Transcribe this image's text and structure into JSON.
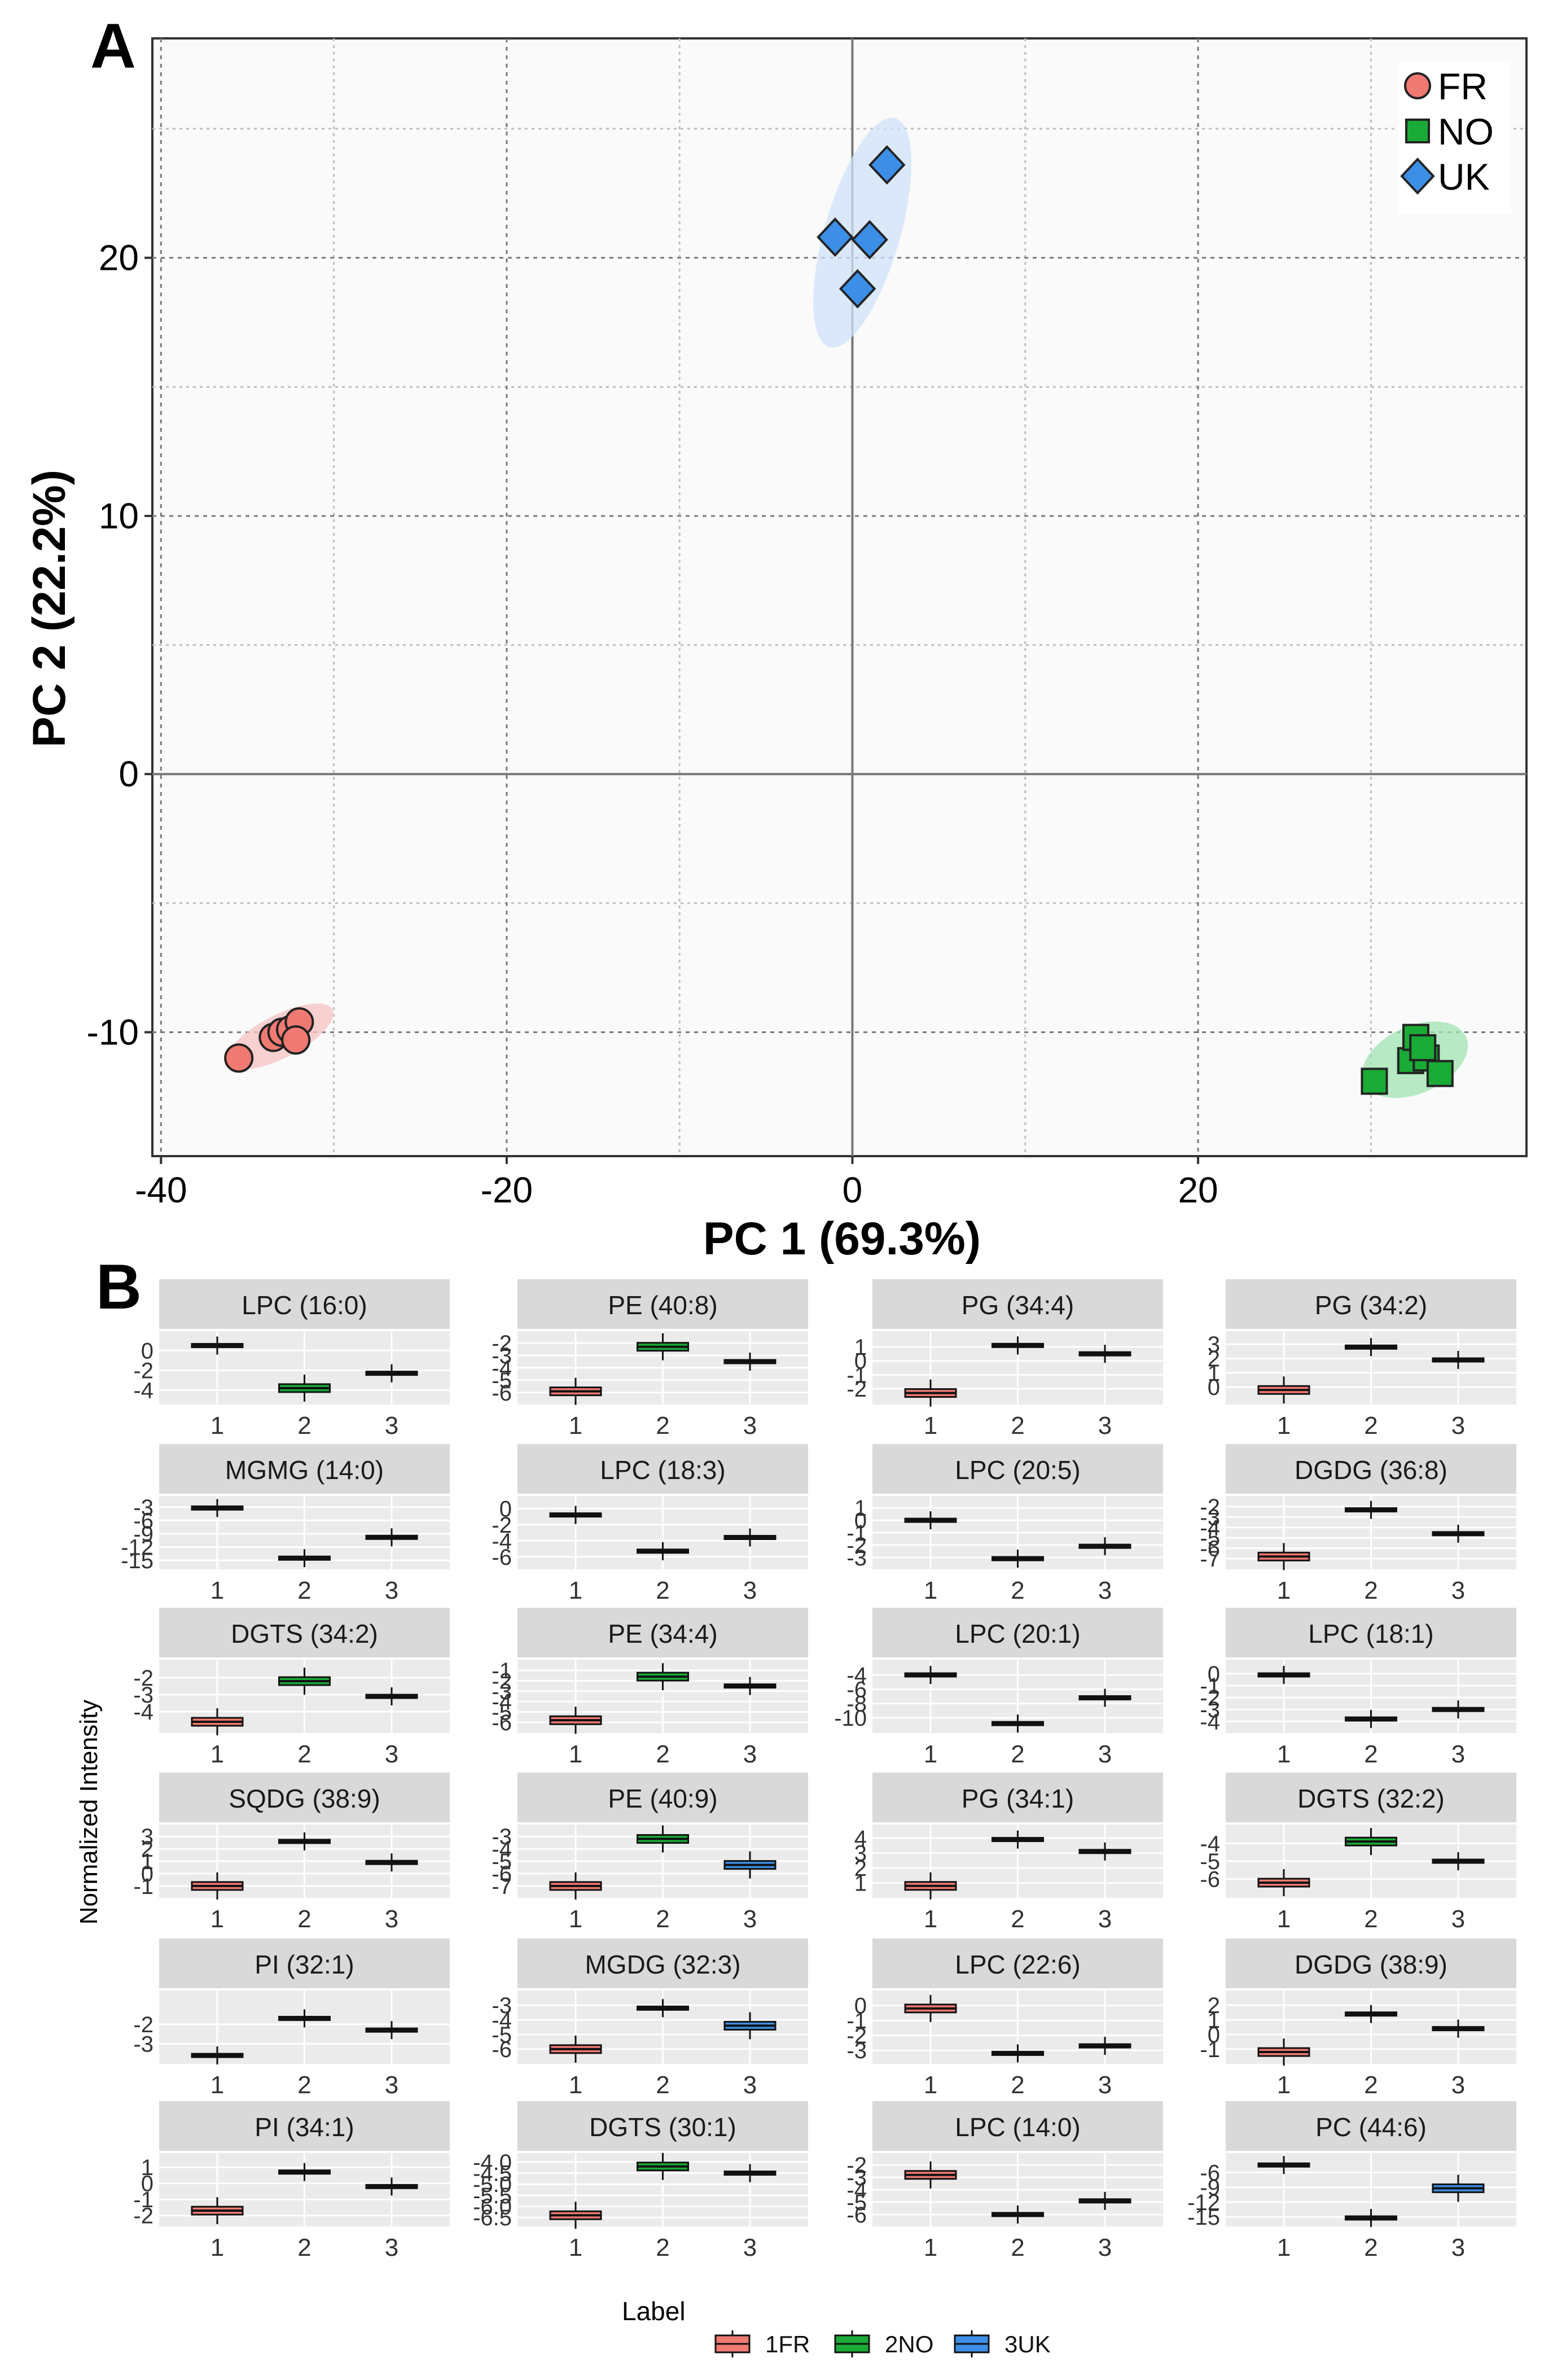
{
  "colors": {
    "FR": "#f07a72",
    "NO": "#1aab36",
    "UK": "#3d8ee6",
    "FR_ellipse": "#f6c2c0",
    "NO_ellipse": "#9fe3b1",
    "UK_ellipse": "#cfe2fa"
  },
  "panel_a": {
    "label": "A",
    "chart_data": {
      "type": "scatter",
      "title": "",
      "xlabel": "PC 1 (69.3%)",
      "ylabel": "PC 2 (22.2%)",
      "xlim": [
        -40.5,
        39
      ],
      "ylim": [
        -14.8,
        28.5
      ],
      "xticks": [
        -40,
        -20,
        0,
        20
      ],
      "yticks": [
        -10,
        0,
        10,
        20
      ],
      "grid": true,
      "legend_position": "top-right",
      "series": [
        {
          "name": "FR",
          "marker": "circle",
          "x": [
            -35.5,
            -33.5,
            -33,
            -32.5,
            -32,
            -32.2
          ],
          "y": [
            -11.0,
            -10.2,
            -10.0,
            -9.9,
            -9.6,
            -10.3
          ]
        },
        {
          "name": "NO",
          "marker": "square",
          "x": [
            30.2,
            32.3,
            32.6,
            33.2,
            34,
            33
          ],
          "y": [
            -11.9,
            -11.1,
            -10.2,
            -11.0,
            -11.6,
            -10.6
          ]
        },
        {
          "name": "UK",
          "marker": "diamond",
          "x": [
            -1.0,
            2.0,
            1.0,
            0.3
          ],
          "y": [
            20.8,
            23.6,
            20.7,
            18.8
          ]
        }
      ]
    }
  },
  "panel_b": {
    "label": "B",
    "ylabel": "Normalized Intensity",
    "legend_title": "Label",
    "legend_items": [
      "1FR",
      "2NO",
      "3UK"
    ],
    "chart_data": [
      {
        "type": "box",
        "title": "LPC (16:0)",
        "categories": [
          "1",
          "2",
          "3"
        ],
        "yticks": [
          "0",
          "-2",
          "-4"
        ],
        "ylim": [
          -5,
          1.5
        ],
        "medians": [
          0.5,
          -3.8,
          -2.3
        ],
        "colored": [
          false,
          true,
          false
        ]
      },
      {
        "type": "box",
        "title": "PE (40:8)",
        "categories": [
          "1",
          "2",
          "3"
        ],
        "yticks": [
          "-2",
          "-3",
          "-4",
          "-5",
          "-6"
        ],
        "ylim": [
          -6.6,
          -1.4
        ],
        "medians": [
          -5.9,
          -2.3,
          -3.5
        ],
        "colored": [
          true,
          true,
          false
        ]
      },
      {
        "type": "box",
        "title": "PG (34:4)",
        "categories": [
          "1",
          "2",
          "3"
        ],
        "yticks": [
          "1",
          "0",
          "-1",
          "-2"
        ],
        "ylim": [
          -2.8,
          1.8
        ],
        "medians": [
          -2.3,
          1.1,
          0.5
        ],
        "colored": [
          true,
          false,
          false
        ]
      },
      {
        "type": "box",
        "title": "PG (34:2)",
        "categories": [
          "1",
          "2",
          "3"
        ],
        "yticks": [
          "3",
          "2",
          "1",
          "0"
        ],
        "ylim": [
          -0.9,
          3.6
        ],
        "medians": [
          -0.2,
          2.8,
          1.9
        ],
        "colored": [
          true,
          false,
          false
        ]
      },
      {
        "type": "box",
        "title": "MGMG (14:0)",
        "categories": [
          "1",
          "2",
          "3"
        ],
        "yticks": [
          "-3",
          "-6",
          "-9",
          "-12",
          "-15"
        ],
        "ylim": [
          -16,
          -1.5
        ],
        "medians": [
          -3.2,
          -14.5,
          -9.8
        ],
        "colored": [
          false,
          false,
          false
        ]
      },
      {
        "type": "box",
        "title": "LPC (18:3)",
        "categories": [
          "1",
          "2",
          "3"
        ],
        "yticks": [
          "0",
          "-2",
          "-4",
          "-6"
        ],
        "ylim": [
          -7,
          1
        ],
        "medians": [
          -0.8,
          -5.3,
          -3.6
        ],
        "colored": [
          false,
          false,
          false
        ]
      },
      {
        "type": "box",
        "title": "LPC (20:5)",
        "categories": [
          "1",
          "2",
          "3"
        ],
        "yticks": [
          "1",
          "0",
          "-1",
          "-2",
          "-3"
        ],
        "ylim": [
          -3.6,
          1.6
        ],
        "medians": [
          0,
          -3.1,
          -2.1
        ],
        "colored": [
          false,
          false,
          false
        ]
      },
      {
        "type": "box",
        "title": "DGDG (36:8)",
        "categories": [
          "1",
          "2",
          "3"
        ],
        "yticks": [
          "-2",
          "-3",
          "-4",
          "-5",
          "-6",
          "-7"
        ],
        "ylim": [
          -7.6,
          -1.4
        ],
        "medians": [
          -6.8,
          -2.3,
          -4.6
        ],
        "colored": [
          true,
          false,
          false
        ]
      },
      {
        "type": "box",
        "title": "DGTS (34:2)",
        "categories": [
          "1",
          "2",
          "3"
        ],
        "yticks": [
          "-2",
          "-3",
          "-4"
        ],
        "ylim": [
          -5,
          -1.2
        ],
        "medians": [
          -4.6,
          -2.2,
          -3.1
        ],
        "colored": [
          true,
          true,
          false
        ]
      },
      {
        "type": "box",
        "title": "PE (34:4)",
        "categories": [
          "1",
          "2",
          "3"
        ],
        "yticks": [
          "-1",
          "-2",
          "-3",
          "-4",
          "-5",
          "-6"
        ],
        "ylim": [
          -6.6,
          -0.4
        ],
        "medians": [
          -5.8,
          -1.6,
          -2.5
        ],
        "colored": [
          true,
          true,
          false
        ]
      },
      {
        "type": "box",
        "title": "LPC (20:1)",
        "categories": [
          "1",
          "2",
          "3"
        ],
        "yticks": [
          "-4",
          "-6",
          "-8",
          "-10"
        ],
        "ylim": [
          -11.5,
          -2.5
        ],
        "medians": [
          -4.0,
          -10.8,
          -7.2
        ],
        "colored": [
          false,
          false,
          false
        ]
      },
      {
        "type": "box",
        "title": "LPC (18:1)",
        "categories": [
          "1",
          "2",
          "3"
        ],
        "yticks": [
          "0",
          "-1",
          "-2",
          "-3",
          "-4"
        ],
        "ylim": [
          -4.6,
          0.8
        ],
        "medians": [
          -0.1,
          -3.8,
          -3.0
        ],
        "colored": [
          false,
          false,
          false
        ]
      },
      {
        "type": "box",
        "title": "SQDG (38:9)",
        "categories": [
          "1",
          "2",
          "3"
        ],
        "yticks": [
          "3",
          "2",
          "1",
          "0",
          "-1"
        ],
        "ylim": [
          -1.6,
          3.6
        ],
        "medians": [
          -1.0,
          2.6,
          0.9
        ],
        "colored": [
          true,
          false,
          false
        ]
      },
      {
        "type": "box",
        "title": "PE (40:9)",
        "categories": [
          "1",
          "2",
          "3"
        ],
        "yticks": [
          "-3",
          "-4",
          "-5",
          "-6",
          "-7"
        ],
        "ylim": [
          -7.6,
          -2.4
        ],
        "medians": [
          -7.0,
          -3.2,
          -5.3
        ],
        "colored": [
          true,
          true,
          true
        ]
      },
      {
        "type": "box",
        "title": "PG (34:1)",
        "categories": [
          "1",
          "2",
          "3"
        ],
        "yticks": [
          "4",
          "3",
          "2",
          "1"
        ],
        "ylim": [
          0.3,
          4.6
        ],
        "medians": [
          0.8,
          3.9,
          3.1
        ],
        "colored": [
          true,
          false,
          false
        ]
      },
      {
        "type": "box",
        "title": "DGTS (32:2)",
        "categories": [
          "1",
          "2",
          "3"
        ],
        "yticks": [
          "-4",
          "-5",
          "-6"
        ],
        "ylim": [
          -6.8,
          -3.2
        ],
        "medians": [
          -6.2,
          -3.9,
          -5.0
        ],
        "colored": [
          true,
          true,
          false
        ]
      },
      {
        "type": "box",
        "title": "PI (32:1)",
        "categories": [
          "1",
          "2",
          "3"
        ],
        "yticks": [
          "-2",
          "-3"
        ],
        "ylim": [
          -3.8,
          -0.5
        ],
        "medians": [
          -3.6,
          -1.7,
          -2.3
        ],
        "colored": [
          false,
          false,
          false
        ]
      },
      {
        "type": "box",
        "title": "MGDG (32:3)",
        "categories": [
          "1",
          "2",
          "3"
        ],
        "yticks": [
          "-3",
          "-4",
          "-5",
          "-6"
        ],
        "ylim": [
          -6.7,
          -2.3
        ],
        "medians": [
          -6.0,
          -3.2,
          -4.4
        ],
        "colored": [
          true,
          false,
          true
        ]
      },
      {
        "type": "box",
        "title": "LPC (22:6)",
        "categories": [
          "1",
          "2",
          "3"
        ],
        "yticks": [
          "0",
          "-1",
          "-2",
          "-3"
        ],
        "ylim": [
          -3.6,
          0.7
        ],
        "medians": [
          -0.2,
          -3.2,
          -2.7
        ],
        "colored": [
          true,
          false,
          false
        ]
      },
      {
        "type": "box",
        "title": "DGDG (38:9)",
        "categories": [
          "1",
          "2",
          "3"
        ],
        "yticks": [
          "2",
          "1",
          "0",
          "-1"
        ],
        "ylim": [
          -1.7,
          2.7
        ],
        "medians": [
          -1.2,
          1.4,
          0.4
        ],
        "colored": [
          true,
          false,
          false
        ]
      },
      {
        "type": "box",
        "title": "PI (34:1)",
        "categories": [
          "1",
          "2",
          "3"
        ],
        "yticks": [
          "1",
          "0",
          "-1",
          "-2"
        ],
        "ylim": [
          -2.4,
          1.6
        ],
        "medians": [
          -1.7,
          0.7,
          -0.2
        ],
        "colored": [
          true,
          false,
          false
        ]
      },
      {
        "type": "box",
        "title": "DGTS (30:1)",
        "categories": [
          "1",
          "2",
          "3"
        ],
        "yticks": [
          "-4.0",
          "-4.5",
          "-5.0",
          "-5.5",
          "-6.0",
          "-6.5"
        ],
        "ylim": [
          -6.7,
          -3.8
        ],
        "medians": [
          -6.4,
          -4.2,
          -4.5
        ],
        "colored": [
          true,
          true,
          false
        ]
      },
      {
        "type": "box",
        "title": "LPC (14:0)",
        "categories": [
          "1",
          "2",
          "3"
        ],
        "yticks": [
          "-2",
          "-3",
          "-4",
          "-5",
          "-6"
        ],
        "ylim": [
          -6.6,
          -1.4
        ],
        "medians": [
          -2.8,
          -6.0,
          -4.9
        ],
        "colored": [
          true,
          false,
          false
        ]
      },
      {
        "type": "box",
        "title": "PC (44:6)",
        "categories": [
          "1",
          "2",
          "3"
        ],
        "yticks": [
          "-6",
          "-9",
          "-12",
          "-15"
        ],
        "ylim": [
          -16,
          -3
        ],
        "medians": [
          -4.5,
          -15.2,
          -9.2
        ],
        "colored": [
          false,
          false,
          true
        ]
      }
    ]
  }
}
